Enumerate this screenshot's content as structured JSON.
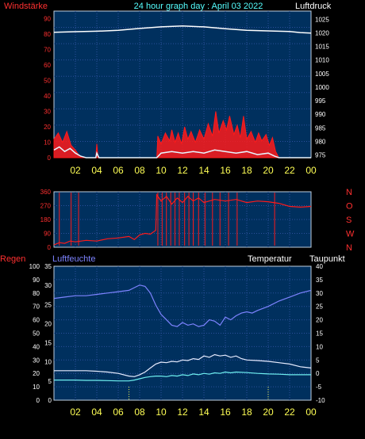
{
  "header": {
    "left_label": "Windstärke",
    "title": "24 hour graph day : April 03 2022",
    "right_label": "Luftdruck"
  },
  "colors": {
    "background": "#000000",
    "plot_bg": "#00305e",
    "grid": "#2b4f9c",
    "frame": "#c0d0e0",
    "wind_gust": "#ff1a1a",
    "wind_speed": "#e8f6ff",
    "pressure": "#ffffff",
    "direction": "#ff1a1a",
    "humidity": "#7d83ff",
    "temperature": "#e8ecff",
    "dewpoint": "#6ff0f0",
    "hour_axis": "#ffff55",
    "red_axis": "#ff3030",
    "title_color": "#55ffff"
  },
  "chart_data": [
    {
      "type": "line",
      "panel": "wind_pressure",
      "left_axis_ticks": [
        "0",
        "10",
        "20",
        "30",
        "40",
        "50",
        "60",
        "70",
        "80",
        "90"
      ],
      "right_axis_ticks": [
        "975",
        "980",
        "985",
        "990",
        "995",
        "1000",
        "1005",
        "1010",
        "1015",
        "1020",
        "1025"
      ],
      "x_ticks": [
        "02",
        "04",
        "06",
        "08",
        "10",
        "12",
        "14",
        "16",
        "18",
        "20",
        "22",
        "00"
      ],
      "ylim_wind": [
        0,
        95
      ],
      "ylim_pressure": [
        974,
        1028
      ],
      "xlim_hours": [
        0,
        24
      ],
      "series": [
        {
          "key": "wind_gust",
          "axis": "left",
          "points": [
            [
              0.0,
              12
            ],
            [
              0.4,
              16
            ],
            [
              0.8,
              10
            ],
            [
              1.2,
              17
            ],
            [
              1.6,
              8
            ],
            [
              2.0,
              5
            ],
            [
              2.3,
              2
            ],
            [
              2.6,
              0
            ],
            [
              3.9,
              0
            ],
            [
              4.0,
              9
            ],
            [
              4.1,
              2
            ],
            [
              4.2,
              0
            ],
            [
              9.6,
              0
            ],
            [
              9.7,
              14
            ],
            [
              10.0,
              9
            ],
            [
              10.4,
              16
            ],
            [
              10.8,
              11
            ],
            [
              11.0,
              18
            ],
            [
              11.3,
              10
            ],
            [
              11.6,
              16
            ],
            [
              11.9,
              9
            ],
            [
              12.2,
              20
            ],
            [
              12.5,
              12
            ],
            [
              12.8,
              17
            ],
            [
              13.2,
              10
            ],
            [
              13.6,
              18
            ],
            [
              14.0,
              12
            ],
            [
              14.4,
              22
            ],
            [
              14.8,
              14
            ],
            [
              15.1,
              30
            ],
            [
              15.4,
              16
            ],
            [
              15.8,
              24
            ],
            [
              16.1,
              18
            ],
            [
              16.4,
              27
            ],
            [
              16.8,
              15
            ],
            [
              17.1,
              21
            ],
            [
              17.4,
              13
            ],
            [
              17.7,
              27
            ],
            [
              18.0,
              12
            ],
            [
              18.4,
              17
            ],
            [
              18.8,
              10
            ],
            [
              19.1,
              16
            ],
            [
              19.4,
              11
            ],
            [
              19.8,
              15
            ],
            [
              20.1,
              8
            ],
            [
              20.4,
              13
            ],
            [
              20.7,
              4
            ],
            [
              21.0,
              0
            ],
            [
              24.0,
              0
            ]
          ]
        },
        {
          "key": "wind_speed",
          "axis": "left",
          "points": [
            [
              0.0,
              5
            ],
            [
              0.5,
              7
            ],
            [
              1.0,
              4
            ],
            [
              1.5,
              6
            ],
            [
              2.0,
              3
            ],
            [
              2.5,
              1
            ],
            [
              3.0,
              0
            ],
            [
              3.9,
              0
            ],
            [
              4.0,
              3
            ],
            [
              4.2,
              0
            ],
            [
              9.6,
              0
            ],
            [
              10.0,
              3
            ],
            [
              11.0,
              4
            ],
            [
              12.0,
              3
            ],
            [
              13.0,
              4
            ],
            [
              14.0,
              3
            ],
            [
              15.0,
              5
            ],
            [
              16.0,
              4
            ],
            [
              17.0,
              3
            ],
            [
              18.0,
              4
            ],
            [
              19.0,
              2
            ],
            [
              20.0,
              3
            ],
            [
              20.6,
              1
            ],
            [
              21.0,
              0
            ],
            [
              24.0,
              0
            ]
          ]
        },
        {
          "key": "pressure",
          "axis": "right",
          "points": [
            [
              0.0,
              1020.2
            ],
            [
              2.0,
              1020.4
            ],
            [
              4.0,
              1020.6
            ],
            [
              6.0,
              1020.9
            ],
            [
              8.0,
              1021.6
            ],
            [
              10.0,
              1022.2
            ],
            [
              12.0,
              1022.5
            ],
            [
              14.0,
              1022.2
            ],
            [
              16.0,
              1021.5
            ],
            [
              18.0,
              1020.9
            ],
            [
              20.0,
              1020.7
            ],
            [
              22.0,
              1020.5
            ],
            [
              23.0,
              1020.1
            ],
            [
              24.0,
              1019.9
            ]
          ]
        }
      ]
    },
    {
      "type": "line",
      "panel": "wind_direction",
      "left_axis_ticks": [
        "0",
        "90",
        "180",
        "270",
        "360"
      ],
      "right_axis_ticks": [
        "N",
        "W",
        "S",
        "O",
        "N"
      ],
      "ylim": [
        0,
        360
      ],
      "xlim_hours": [
        0,
        24
      ],
      "series": [
        {
          "key": "direction",
          "points": [
            [
              0.0,
              15
            ],
            [
              0.5,
              30
            ],
            [
              1.0,
              25
            ],
            [
              1.5,
              40
            ],
            [
              2.0,
              35
            ],
            [
              3.0,
              45
            ],
            [
              4.0,
              40
            ],
            [
              5.0,
              55
            ],
            [
              6.0,
              60
            ],
            [
              7.0,
              70
            ],
            [
              7.5,
              50
            ],
            [
              8.0,
              80
            ],
            [
              8.5,
              90
            ],
            [
              9.0,
              85
            ],
            [
              9.5,
              110
            ],
            [
              9.6,
              340
            ],
            [
              10.0,
              300
            ],
            [
              10.5,
              330
            ],
            [
              11.0,
              280
            ],
            [
              11.5,
              320
            ],
            [
              12.0,
              290
            ],
            [
              12.5,
              330
            ],
            [
              13.0,
              300
            ],
            [
              13.5,
              320
            ],
            [
              14.0,
              290
            ],
            [
              15.0,
              310
            ],
            [
              16.0,
              300
            ],
            [
              17.0,
              310
            ],
            [
              18.0,
              290
            ],
            [
              19.0,
              300
            ],
            [
              20.0,
              295
            ],
            [
              21.0,
              285
            ],
            [
              22.0,
              265
            ],
            [
              23.0,
              260
            ],
            [
              24.0,
              265
            ]
          ]
        }
      ],
      "spikes_hours": [
        0.5,
        1.6,
        2.3,
        9.7,
        10.1,
        10.5,
        10.9,
        11.3,
        11.7,
        12.2,
        12.6,
        13.0,
        13.5,
        14.1,
        14.8,
        15.5,
        16.3,
        17.1,
        20.6
      ]
    },
    {
      "type": "line",
      "panel": "humidity_temperature",
      "labels": {
        "rain": "Regen",
        "humidity": "Luftfeuchte",
        "temperature": "Temperatur",
        "dewpoint": "Taupunkt"
      },
      "rain_axis_ticks": [
        "0",
        "10",
        "20",
        "30",
        "40",
        "50",
        "60",
        "70",
        "80",
        "90",
        "100"
      ],
      "humidity_axis_ticks": [
        "0",
        "5",
        "10",
        "15",
        "20",
        "25",
        "30",
        "35"
      ],
      "temperature_axis_ticks": [
        "-10",
        "-5",
        "0",
        "5",
        "10",
        "15",
        "20",
        "25",
        "30",
        "35",
        "40"
      ],
      "x_ticks": [
        "02",
        "04",
        "06",
        "08",
        "10",
        "12",
        "14",
        "16",
        "18",
        "20",
        "22",
        "00"
      ],
      "ylim_humidity": [
        0,
        100
      ],
      "ylim_temperature": [
        -10,
        40
      ],
      "xlim_hours": [
        0,
        24
      ],
      "series": [
        {
          "key": "humidity",
          "points": [
            [
              0.0,
              76
            ],
            [
              1.0,
              77
            ],
            [
              2.0,
              78
            ],
            [
              3.0,
              78
            ],
            [
              4.0,
              79
            ],
            [
              5.0,
              80
            ],
            [
              6.0,
              81
            ],
            [
              7.0,
              82
            ],
            [
              7.5,
              84
            ],
            [
              8.0,
              86
            ],
            [
              8.5,
              85
            ],
            [
              9.0,
              80
            ],
            [
              9.5,
              71
            ],
            [
              10.0,
              64
            ],
            [
              10.5,
              60
            ],
            [
              11.0,
              56
            ],
            [
              11.5,
              55
            ],
            [
              12.0,
              58
            ],
            [
              12.5,
              56
            ],
            [
              13.0,
              57
            ],
            [
              13.5,
              55
            ],
            [
              14.0,
              56
            ],
            [
              14.5,
              60
            ],
            [
              15.0,
              59
            ],
            [
              15.5,
              56
            ],
            [
              16.0,
              62
            ],
            [
              16.5,
              60
            ],
            [
              17.0,
              63
            ],
            [
              17.5,
              65
            ],
            [
              18.0,
              66
            ],
            [
              18.5,
              65
            ],
            [
              19.0,
              67
            ],
            [
              20.0,
              70
            ],
            [
              21.0,
              74
            ],
            [
              22.0,
              77
            ],
            [
              23.0,
              80
            ],
            [
              24.0,
              82
            ]
          ]
        },
        {
          "key": "temperature",
          "points": [
            [
              0.0,
              1.0
            ],
            [
              1.0,
              1.0
            ],
            [
              2.0,
              1.0
            ],
            [
              3.0,
              1.0
            ],
            [
              4.0,
              0.8
            ],
            [
              5.0,
              0.5
            ],
            [
              6.0,
              0.0
            ],
            [
              7.0,
              -1.0
            ],
            [
              7.5,
              -1.2
            ],
            [
              8.0,
              -0.5
            ],
            [
              8.5,
              0.5
            ],
            [
              9.0,
              2.0
            ],
            [
              9.5,
              3.5
            ],
            [
              10.0,
              4.2
            ],
            [
              10.5,
              4.0
            ],
            [
              11.0,
              4.5
            ],
            [
              11.5,
              4.3
            ],
            [
              12.0,
              5.0
            ],
            [
              12.5,
              4.8
            ],
            [
              13.0,
              5.5
            ],
            [
              13.5,
              5.2
            ],
            [
              14.0,
              6.5
            ],
            [
              14.5,
              6.0
            ],
            [
              15.0,
              7.0
            ],
            [
              15.5,
              6.5
            ],
            [
              16.0,
              6.8
            ],
            [
              16.5,
              6.0
            ],
            [
              17.0,
              6.5
            ],
            [
              17.5,
              5.5
            ],
            [
              18.0,
              5.0
            ],
            [
              19.0,
              4.8
            ],
            [
              20.0,
              4.5
            ],
            [
              21.0,
              4.0
            ],
            [
              22.0,
              3.5
            ],
            [
              23.0,
              2.5
            ],
            [
              24.0,
              2.0
            ]
          ]
        },
        {
          "key": "dewpoint",
          "points": [
            [
              0.0,
              -2.5
            ],
            [
              1.0,
              -2.5
            ],
            [
              2.0,
              -2.5
            ],
            [
              3.0,
              -2.6
            ],
            [
              4.0,
              -2.6
            ],
            [
              5.0,
              -2.7
            ],
            [
              6.0,
              -2.8
            ],
            [
              7.0,
              -2.8
            ],
            [
              7.5,
              -2.5
            ],
            [
              8.0,
              -2.0
            ],
            [
              8.5,
              -1.5
            ],
            [
              9.0,
              -1.2
            ],
            [
              9.5,
              -1.0
            ],
            [
              10.0,
              -1.0
            ],
            [
              10.5,
              -1.2
            ],
            [
              11.0,
              -0.8
            ],
            [
              11.5,
              -1.0
            ],
            [
              12.0,
              -0.5
            ],
            [
              12.5,
              -0.8
            ],
            [
              13.0,
              -0.2
            ],
            [
              13.5,
              -0.5
            ],
            [
              14.0,
              0.0
            ],
            [
              14.5,
              -0.3
            ],
            [
              15.0,
              0.2
            ],
            [
              15.5,
              0.0
            ],
            [
              16.0,
              0.5
            ],
            [
              16.5,
              0.2
            ],
            [
              17.0,
              0.5
            ],
            [
              18.0,
              0.3
            ],
            [
              19.0,
              0.0
            ],
            [
              20.0,
              -0.2
            ],
            [
              21.0,
              -0.3
            ],
            [
              22.0,
              -0.5
            ],
            [
              23.0,
              -0.5
            ],
            [
              24.0,
              -0.5
            ]
          ]
        }
      ],
      "markers_hours": [
        7.0,
        20.0
      ]
    }
  ]
}
